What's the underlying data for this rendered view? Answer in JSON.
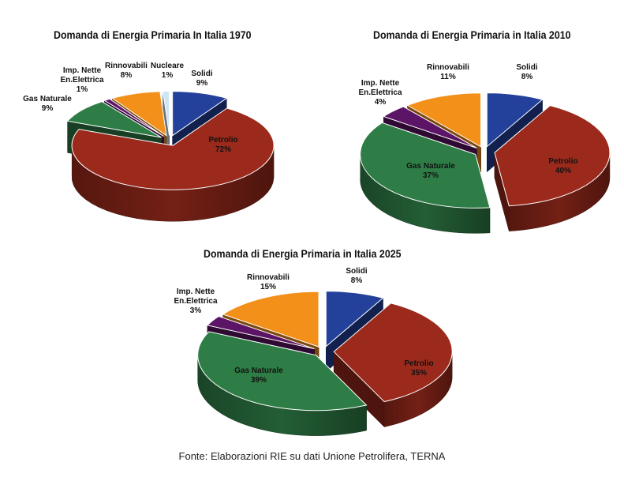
{
  "chart_data": [
    {
      "type": "pie",
      "title": "Domanda di Energia Primaria In Italia 1970",
      "slices": [
        {
          "name": "Solidi",
          "value": 9,
          "label": "9%",
          "color": "#23409a"
        },
        {
          "name": "Petrolio",
          "value": 72,
          "label": "72%",
          "color": "#9b2a1c"
        },
        {
          "name": "Gas Naturale",
          "value": 9,
          "label": "9%",
          "color": "#2f7d46"
        },
        {
          "name": "Imp. Nette En.Elettrica",
          "value": 1,
          "label": "1%",
          "color": "#5c1466"
        },
        {
          "name": "Rinnovabili",
          "value": 8,
          "label": "8%",
          "color": "#f39019"
        },
        {
          "name": "Nucleare",
          "value": 1,
          "label": "1%",
          "color": "#cde6f2"
        }
      ]
    },
    {
      "type": "pie",
      "title": "Domanda di Energia Primaria in Italia 2010",
      "slices": [
        {
          "name": "Solidi",
          "value": 8,
          "label": "8%",
          "color": "#23409a"
        },
        {
          "name": "Petrolio",
          "value": 40,
          "label": "40%",
          "color": "#9b2a1c"
        },
        {
          "name": "Gas Naturale",
          "value": 37,
          "label": "37%",
          "color": "#2f7d46"
        },
        {
          "name": "Imp. Nette En.Elettrica",
          "value": 4,
          "label": "4%",
          "color": "#5c1466"
        },
        {
          "name": "Rinnovabili",
          "value": 11,
          "label": "11%",
          "color": "#f39019"
        }
      ]
    },
    {
      "type": "pie",
      "title": "Domanda di Energia Primaria in Italia 2025",
      "slices": [
        {
          "name": "Solidi",
          "value": 8,
          "label": "8%",
          "color": "#23409a"
        },
        {
          "name": "Petrolio",
          "value": 35,
          "label": "35%",
          "color": "#9b2a1c"
        },
        {
          "name": "Gas Naturale",
          "value": 39,
          "label": "39%",
          "color": "#2f7d46"
        },
        {
          "name": "Imp. Nette En.Elettrica",
          "value": 3,
          "label": "3%",
          "color": "#5c1466"
        },
        {
          "name": "Rinnovabili",
          "value": 15,
          "label": "15%",
          "color": "#f39019"
        }
      ]
    }
  ],
  "source": "Fonte: Elaborazioni RIE su dati Unione Petrolifera, TERNA"
}
